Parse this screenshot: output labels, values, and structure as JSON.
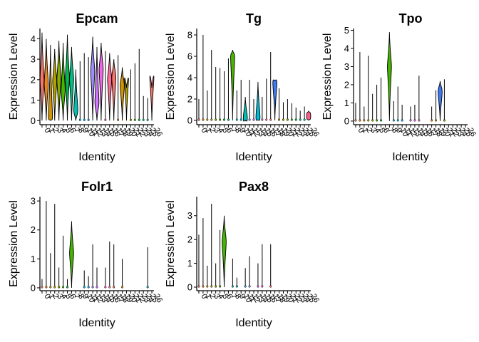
{
  "chart_data": [
    {
      "type": "violin",
      "title": "Epcam",
      "xlabel": "Identity",
      "ylabel": "Expression Level",
      "ylim": [
        -0.2,
        4.5
      ],
      "yticks": [
        0,
        1,
        2,
        3,
        4
      ],
      "categories": [
        "0",
        "1",
        "2",
        "3",
        "4",
        "5",
        "6",
        "7",
        "8",
        "9",
        "10",
        "11",
        "12",
        "13",
        "14",
        "15",
        "16",
        "17",
        "18",
        "19",
        "20",
        "21",
        "22",
        "23",
        "24",
        "25",
        "26"
      ],
      "max_values": [
        4.3,
        4.0,
        3.7,
        3.5,
        3.9,
        3.8,
        4.2,
        3.6,
        2.5,
        2.9,
        3.3,
        3.1,
        4.1,
        3.6,
        3.8,
        3.4,
        3.3,
        3.0,
        3.2,
        2.6,
        1.6,
        2.5,
        2.8,
        3.5,
        1.2,
        1.1,
        1.6
      ],
      "medians": [
        2.0,
        1.8,
        0.2,
        1.9,
        2.0,
        1.5,
        2.1,
        2.0,
        0.5,
        0.0,
        0.0,
        0.0,
        2.4,
        0.9,
        2.5,
        0.0,
        2.0,
        2.1,
        0.0,
        1.7,
        2.0,
        0.0,
        0.0,
        0.0,
        0.0,
        0.0,
        2.1
      ],
      "colors": [
        "#F8766D",
        "#E7851E",
        "#D09400",
        "#B2A100",
        "#89AC00",
        "#45B500",
        "#00BC51",
        "#00C087",
        "#00C0B2",
        "#00BCD6",
        "#00B3F2",
        "#29A3FF",
        "#9C8DFF",
        "#D277FF",
        "#F166E8",
        "#FF61C7",
        "#FF6A98",
        "#F8766D",
        "#E7851E",
        "#D09400",
        "#B2A100",
        "#89AC00",
        "#45B500",
        "#00BC51",
        "#00C087",
        "#00C0B2",
        "#F8766D"
      ]
    },
    {
      "type": "violin",
      "title": "Tg",
      "xlabel": "Identity",
      "ylabel": "Expression Level",
      "ylim": [
        -0.4,
        8.6
      ],
      "yticks": [
        0,
        2,
        4,
        6,
        8
      ],
      "categories": [
        "0",
        "1",
        "2",
        "3",
        "4",
        "5",
        "6",
        "7",
        "8",
        "9",
        "10",
        "11",
        "12",
        "13",
        "14",
        "15",
        "16",
        "17",
        "18",
        "19",
        "20",
        "21",
        "22",
        "23",
        "24",
        "25",
        "26"
      ],
      "max_values": [
        2.0,
        8.0,
        2.8,
        6.6,
        5.0,
        4.9,
        4.6,
        5.8,
        6.6,
        2.8,
        3.8,
        2.2,
        3.8,
        2.0,
        3.6,
        2.2,
        3.9,
        6.4,
        3.8,
        3.0,
        1.7,
        2.0,
        1.6,
        1.2,
        0.9,
        1.3,
        0.9
      ],
      "medians": [
        0.0,
        0.0,
        0.0,
        0.0,
        0.0,
        0.0,
        0.0,
        0.0,
        5.9,
        0.0,
        0.0,
        0.2,
        0.0,
        0.0,
        0.3,
        0.0,
        0.0,
        0.0,
        3.5,
        0.0,
        0.0,
        0.0,
        0.0,
        0.0,
        0.0,
        0.0,
        0.4
      ],
      "colors": [
        "#F8766D",
        "#E7851E",
        "#D09400",
        "#B2A100",
        "#89AC00",
        "#45B500",
        "#00BC51",
        "#00C087",
        "#49B500",
        "#00BCD6",
        "#00B3F2",
        "#00C0B2",
        "#9C8DFF",
        "#D277FF",
        "#00BCD6",
        "#FF61C7",
        "#FF6A98",
        "#F8766D",
        "#3C79F2",
        "#D09400",
        "#B2A100",
        "#89AC00",
        "#45B500",
        "#00BC51",
        "#00C087",
        "#00C0B2",
        "#FF5C8A"
      ]
    },
    {
      "type": "violin",
      "title": "Tpo",
      "xlabel": "Identity",
      "ylabel": "Expression Level",
      "ylim": [
        -0.2,
        5.1
      ],
      "yticks": [
        0,
        1,
        2,
        3,
        4,
        5
      ],
      "categories": [
        "0",
        "1",
        "2",
        "3",
        "4",
        "5",
        "6",
        "7",
        "8",
        "9",
        "10",
        "11",
        "12",
        "13",
        "14",
        "15",
        "16",
        "17",
        "18",
        "19",
        "20",
        "21",
        "22",
        "23",
        "24",
        "25",
        "26"
      ],
      "max_values": [
        1.0,
        3.8,
        0.8,
        3.6,
        1.5,
        2.0,
        2.4,
        0.0,
        4.9,
        1.1,
        1.9,
        0.9,
        0.0,
        0.8,
        0.9,
        2.5,
        0.0,
        0.0,
        0.8,
        1.7,
        2.2,
        2.3,
        0.0,
        0.0,
        0.0,
        0.0,
        0.0
      ],
      "medians": [
        0.0,
        0.0,
        0.0,
        0.0,
        0.0,
        0.0,
        0.0,
        0.0,
        3.0,
        0.0,
        0.0,
        0.0,
        0.0,
        0.0,
        0.0,
        0.0,
        0.0,
        0.0,
        0.0,
        0.0,
        1.6,
        0.0,
        0.0,
        0.0,
        0.0,
        0.0,
        0.0
      ],
      "colors": [
        "#F8766D",
        "#E7851E",
        "#D09400",
        "#B2A100",
        "#89AC00",
        "#45B500",
        "#00BC51",
        "#00C087",
        "#45B500",
        "#00BCD6",
        "#00B3F2",
        "#29A3FF",
        "#9C8DFF",
        "#D277FF",
        "#F166E8",
        "#FF61C7",
        "#FF6A98",
        "#F8766D",
        "#E7851E",
        "#D09400",
        "#3C79F2",
        "#89AC00",
        "#45B500",
        "#00BC51",
        "#00C087",
        "#00C0B2",
        "#F8766D"
      ]
    },
    {
      "type": "violin",
      "title": "Folr1",
      "xlabel": "Identity",
      "ylabel": "Expression Level",
      "ylim": [
        -0.1,
        3.15
      ],
      "yticks": [
        0,
        1,
        2,
        3
      ],
      "categories": [
        "0",
        "1",
        "2",
        "3",
        "4",
        "5",
        "6",
        "7",
        "8",
        "9",
        "10",
        "11",
        "12",
        "13",
        "14",
        "15",
        "16",
        "17",
        "18",
        "19",
        "20",
        "21",
        "22",
        "23",
        "24",
        "25",
        "26"
      ],
      "max_values": [
        0.3,
        3.0,
        1.2,
        2.9,
        0.7,
        1.8,
        0.3,
        2.3,
        0.0,
        0.0,
        0.6,
        0.4,
        1.5,
        0.7,
        0.0,
        0.7,
        1.6,
        1.5,
        0.0,
        1.0,
        0.0,
        0.0,
        0.0,
        0.0,
        0.0,
        1.4,
        0.0
      ],
      "medians": [
        0.0,
        0.0,
        0.0,
        0.0,
        0.0,
        0.0,
        0.0,
        1.2,
        0.0,
        0.0,
        0.0,
        0.0,
        0.0,
        0.0,
        0.0,
        0.0,
        0.0,
        0.0,
        0.0,
        0.0,
        0.0,
        0.0,
        0.0,
        0.0,
        0.0,
        0.0,
        0.0
      ],
      "colors": [
        "#F8766D",
        "#E7851E",
        "#D09400",
        "#B2A100",
        "#89AC00",
        "#45B500",
        "#00BC51",
        "#45B500",
        "#00C0B2",
        "#00BCD6",
        "#00B3F2",
        "#29A3FF",
        "#9C8DFF",
        "#D277FF",
        "#F166E8",
        "#FF61C7",
        "#FF6A98",
        "#F8766D",
        "#E7851E",
        "#D09400",
        "#B2A100",
        "#89AC00",
        "#45B500",
        "#00BC51",
        "#00C087",
        "#00C0B2",
        "#F8766D"
      ]
    },
    {
      "type": "violin",
      "title": "Pax8",
      "xlabel": "Identity",
      "ylabel": "Expression Level",
      "ylim": [
        -0.15,
        3.8
      ],
      "yticks": [
        0,
        1,
        2,
        3
      ],
      "categories": [
        "0",
        "1",
        "2",
        "3",
        "4",
        "5",
        "6",
        "7",
        "8",
        "9",
        "10",
        "11",
        "12",
        "13",
        "14",
        "15",
        "16",
        "17",
        "18",
        "19",
        "20",
        "21",
        "22",
        "23",
        "24",
        "25",
        "26"
      ],
      "max_values": [
        2.2,
        2.9,
        0.9,
        3.5,
        1.0,
        2.4,
        3.0,
        0.0,
        1.2,
        0.4,
        0.0,
        0.8,
        1.3,
        0.0,
        1.0,
        1.8,
        0.0,
        1.8,
        0.0,
        0.0,
        0.0,
        0.0,
        0.0,
        0.0,
        0.0,
        0.0,
        0.0
      ],
      "medians": [
        0.0,
        0.0,
        0.0,
        0.0,
        0.0,
        0.0,
        1.9,
        0.0,
        0.0,
        0.0,
        0.0,
        0.0,
        0.0,
        0.0,
        0.0,
        0.0,
        0.0,
        0.0,
        0.0,
        0.0,
        0.0,
        0.0,
        0.0,
        0.0,
        0.0,
        0.0,
        0.0
      ],
      "colors": [
        "#F8766D",
        "#E7851E",
        "#D09400",
        "#B2A100",
        "#89AC00",
        "#45B500",
        "#45B500",
        "#00C087",
        "#00C0B2",
        "#00BCD6",
        "#00B3F2",
        "#29A3FF",
        "#9C8DFF",
        "#D277FF",
        "#F166E8",
        "#FF61C7",
        "#FF6A98",
        "#F8766D",
        "#E7851E",
        "#D09400",
        "#B2A100",
        "#89AC00",
        "#45B500",
        "#00BC51",
        "#00C087",
        "#00C0B2",
        "#F8766D"
      ]
    }
  ]
}
